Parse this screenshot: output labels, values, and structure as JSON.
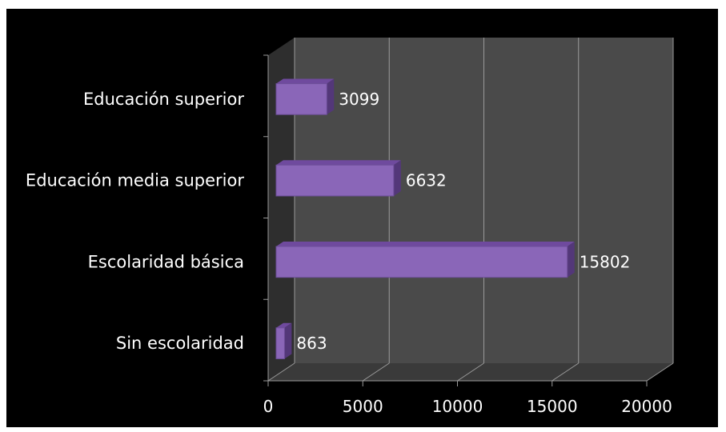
{
  "chart_data": {
    "type": "bar",
    "orientation": "horizontal",
    "style": "3d",
    "categories": [
      "Sin escolaridad",
      "Escolaridad básica",
      "Educación media superior",
      "Educación superior"
    ],
    "values": [
      863,
      15802,
      6632,
      3099
    ],
    "data_labels": [
      "863",
      "15802",
      "6632",
      "3099"
    ],
    "xlim": [
      0,
      20000
    ],
    "x_ticks": [
      0,
      5000,
      10000,
      15000,
      20000
    ],
    "x_tick_labels": [
      "0",
      "5000",
      "10000",
      "15000",
      "20000"
    ],
    "grid": true,
    "legend": "none",
    "colors": {
      "background": "#000000",
      "wall": "#4a4a4a",
      "floor": "#3a3a3a",
      "gridline": "#9a9a9a",
      "bar_front": "#8a66b8",
      "bar_top": "#6f4a9e",
      "bar_side": "#533779",
      "text": "#ffffff"
    }
  }
}
